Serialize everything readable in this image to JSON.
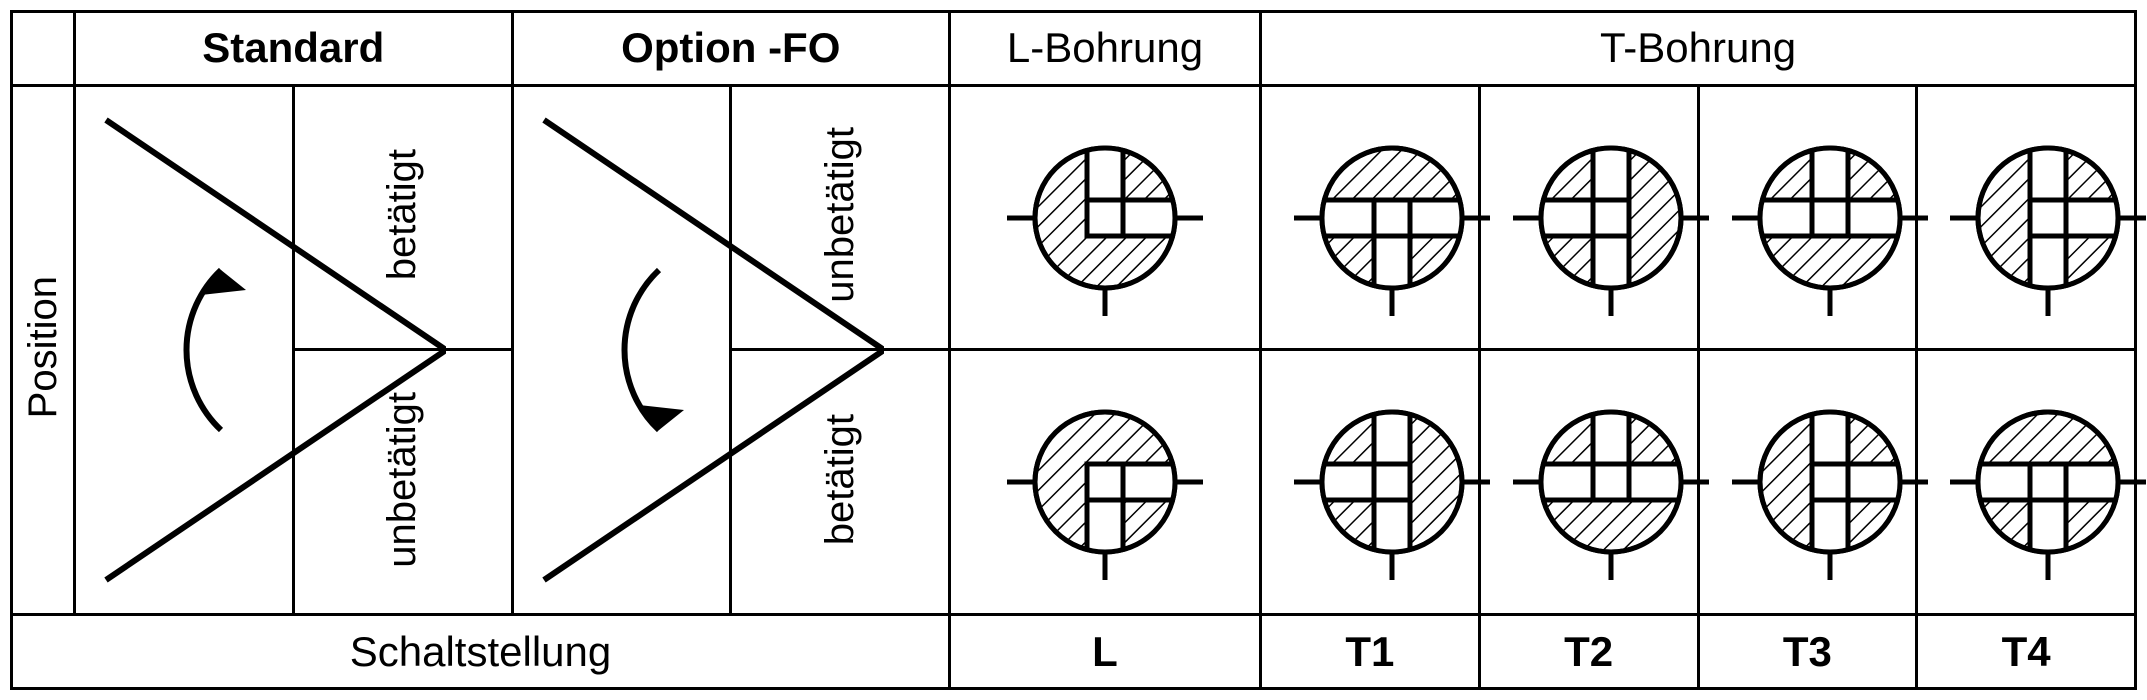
{
  "headers": {
    "standard": "Standard",
    "option": "Option -FO",
    "lbohrung": "L-Bohrung",
    "tbohrung": "T-Bohrung"
  },
  "rowlabels": {
    "position": "Position",
    "betatigt": "betätigt",
    "unbetatigt": "unbetätigt"
  },
  "footer": {
    "schaltstellung": "Schaltstellung",
    "L": "L",
    "T1": "T1",
    "T2": "T2",
    "T3": "T3",
    "T4": "T4"
  },
  "style": {
    "stroke": "#000000",
    "stroke_width": 5,
    "circle_r": 70,
    "bore_w": 36,
    "stub_len": 28,
    "font_header": 42,
    "font_label": 40
  },
  "valves": {
    "row1": {
      "L": {
        "ports": [
          "up",
          "right"
        ],
        "rot": 0
      },
      "T1": {
        "ports": [
          "left",
          "right",
          "down"
        ],
        "rot": 0
      },
      "T2": {
        "ports": [
          "left",
          "up",
          "down"
        ],
        "rot": 0
      },
      "T3": {
        "ports": [
          "left",
          "up",
          "right"
        ],
        "rot": 0
      },
      "T4": {
        "ports": [
          "up",
          "down",
          "right"
        ],
        "rot": 0
      }
    },
    "row2": {
      "L": {
        "ports": [
          "down",
          "right"
        ],
        "rot": 0
      },
      "T1": {
        "ports": [
          "left",
          "up",
          "down"
        ],
        "rot": 0
      },
      "T2": {
        "ports": [
          "left",
          "up",
          "right"
        ],
        "rot": 0
      },
      "T3": {
        "ports": [
          "up",
          "down",
          "right"
        ],
        "rot": 0
      },
      "T4": {
        "ports": [
          "left",
          "right",
          "down"
        ],
        "rot": 0
      }
    }
  },
  "levers": {
    "standard": {
      "arrow": "ccw_upper"
    },
    "option": {
      "arrow": "ccw_lower"
    }
  }
}
